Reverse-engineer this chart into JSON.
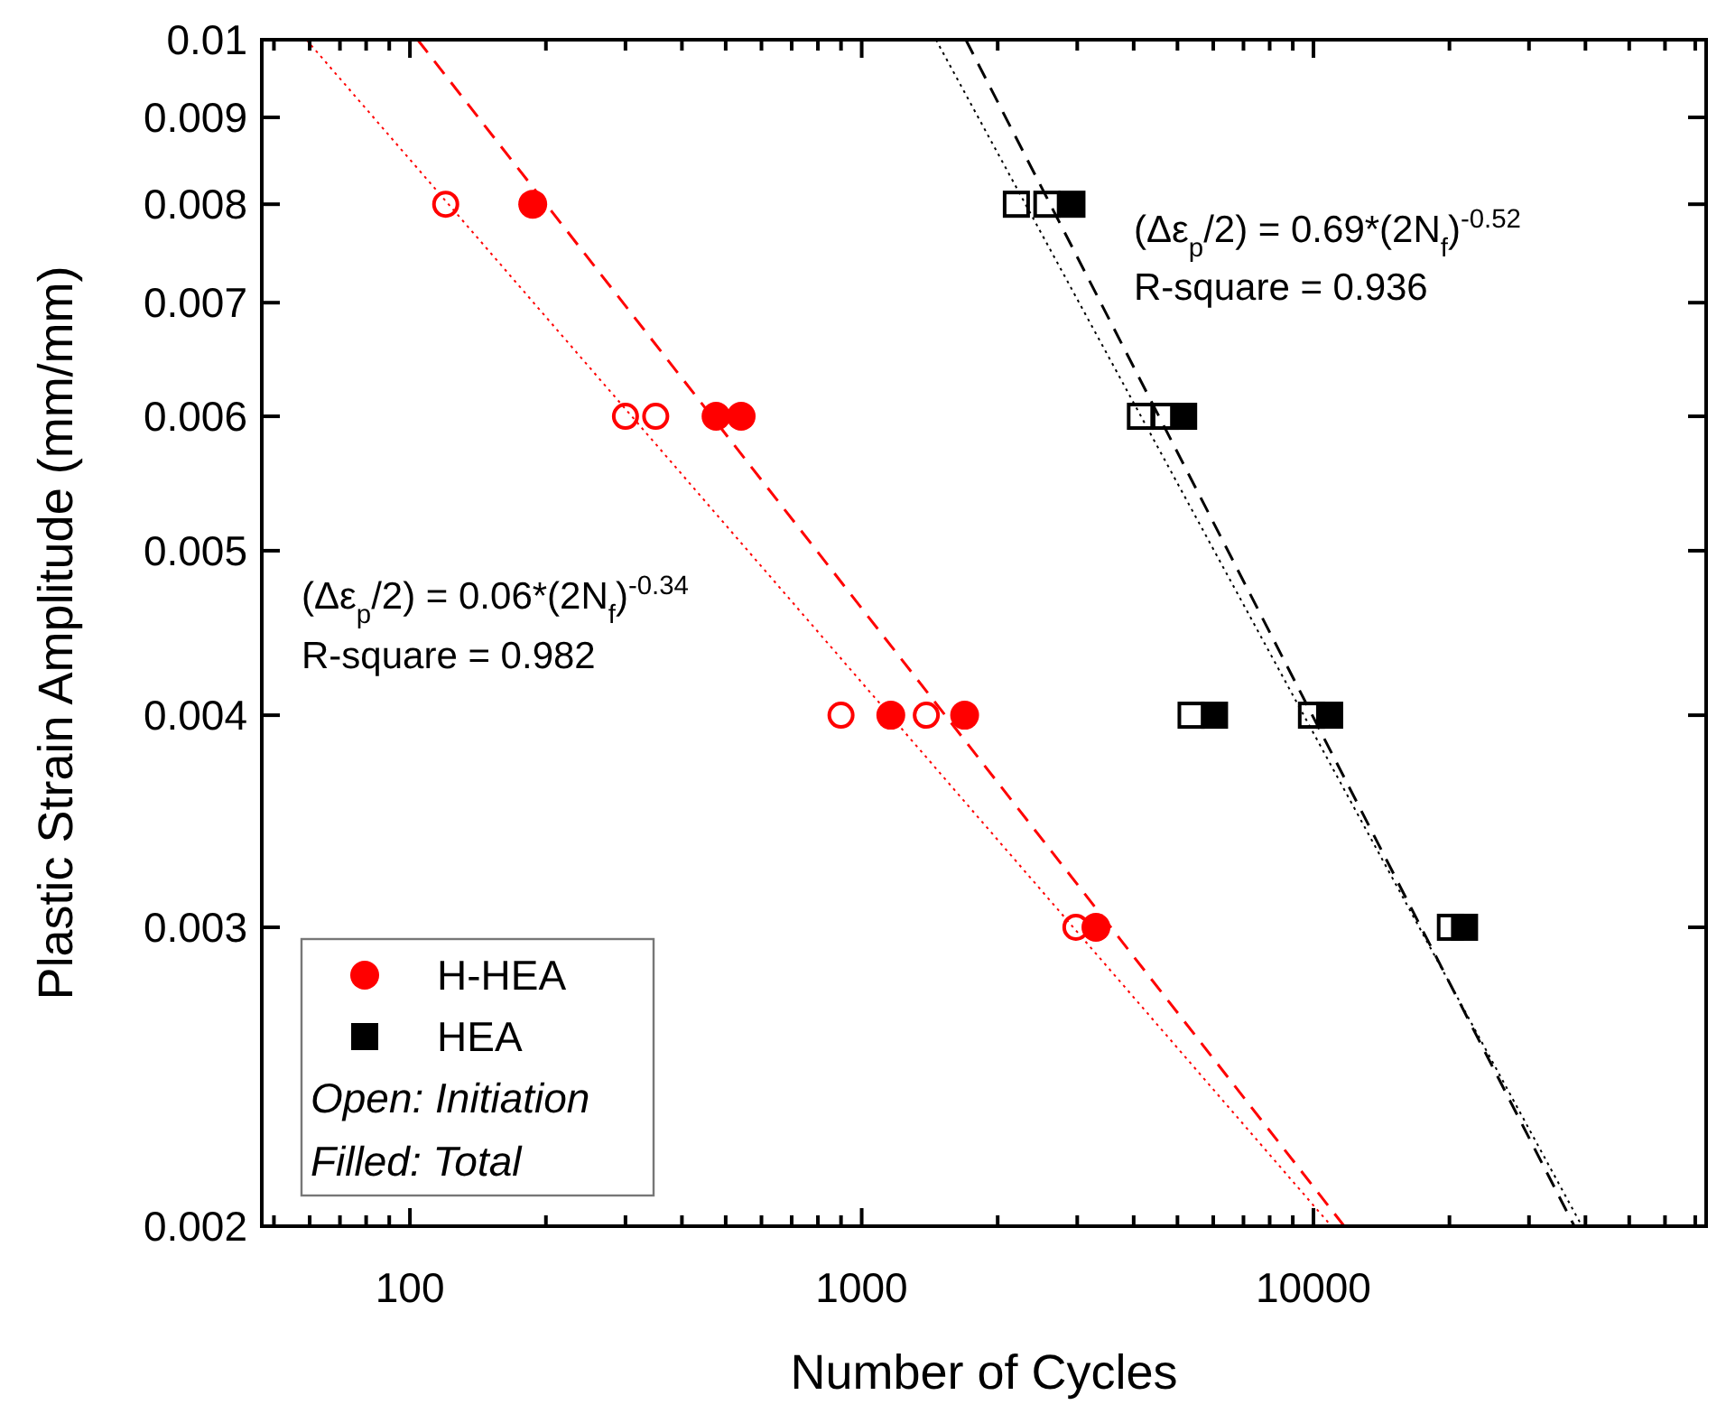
{
  "chart_data": {
    "type": "scatter",
    "xlabel": "Number of Cycles",
    "ylabel": "Plastic Strain Amplitude (mm/mm)",
    "log": "xy",
    "legend": "bottom left",
    "grid": false,
    "xlim": [
      47,
      74000
    ],
    "ylim": [
      0.002,
      0.01
    ],
    "xticks": [
      {
        "value": 50,
        "label": null
      },
      {
        "value": 60,
        "label": null
      },
      {
        "value": 70,
        "label": null
      },
      {
        "value": 80,
        "label": null
      },
      {
        "value": 90,
        "label": null
      },
      100,
      {
        "value": 200,
        "label": null
      },
      {
        "value": 300,
        "label": null
      },
      {
        "value": 400,
        "label": null
      },
      {
        "value": 500,
        "label": null
      },
      {
        "value": 600,
        "label": null
      },
      {
        "value": 700,
        "label": null
      },
      {
        "value": 800,
        "label": null
      },
      {
        "value": 900,
        "label": null
      },
      1000,
      {
        "value": 2000,
        "label": null
      },
      {
        "value": 3000,
        "label": null
      },
      {
        "value": 4000,
        "label": null
      },
      {
        "value": 5000,
        "label": null
      },
      {
        "value": 6000,
        "label": null
      },
      {
        "value": 7000,
        "label": null
      },
      {
        "value": 8000,
        "label": null
      },
      {
        "value": 9000,
        "label": null
      },
      10000,
      {
        "value": 20000,
        "label": null
      },
      {
        "value": 30000,
        "label": null
      },
      {
        "value": 40000,
        "label": null
      },
      {
        "value": 50000,
        "label": null
      },
      {
        "value": 60000,
        "label": null
      },
      {
        "value": 70000,
        "label": null
      }
    ],
    "yticks": [
      0.002,
      0.003,
      0.004,
      0.005,
      0.006,
      0.007,
      0.008,
      0.009,
      0.01
    ],
    "series": [
      {
        "type": "line",
        "color": "#ff0000",
        "line_style": "dashed",
        "marker": "none",
        "x": [
          104,
          11700
        ],
        "values": [
          0.01,
          0.002
        ]
      },
      {
        "type": "line",
        "color": "#ff0000",
        "line_style": "dotted",
        "marker": "none",
        "x": [
          59,
          10960
        ],
        "values": [
          0.01,
          0.002
        ]
      },
      {
        "type": "line",
        "color": "#000000",
        "line_style": "dashed",
        "marker": "none",
        "x": [
          1700,
          37800
        ],
        "values": [
          0.01,
          0.002
        ]
      },
      {
        "type": "line",
        "color": "#000000",
        "line_style": "dotted",
        "marker": "none",
        "x": [
          1460,
          39300
        ],
        "values": [
          0.01,
          0.002
        ]
      },
      {
        "color": "#ff0000",
        "marker": "circle-open",
        "x": [
          120,
          300,
          350,
          900,
          1390,
          2980
        ],
        "values": [
          0.008,
          0.006,
          0.006,
          0.004,
          0.004,
          0.003
        ]
      },
      {
        "name": "H-HEA",
        "color": "#ff0000",
        "marker": "circle",
        "x": [
          187,
          476,
          541,
          1160,
          1690,
          3300
        ],
        "values": [
          0.008,
          0.006,
          0.006,
          0.004,
          0.004,
          0.003
        ]
      },
      {
        "color": "#000000",
        "marker": "square-open",
        "x": [
          2200,
          2570,
          4140,
          4700,
          5360,
          9900,
          20100
        ],
        "values": [
          0.008,
          0.008,
          0.006,
          0.006,
          0.004,
          0.004,
          0.003
        ]
      },
      {
        "name": "HEA",
        "color": "#000000",
        "marker": "square",
        "x": [
          2920,
          5160,
          6040,
          10860,
          21600
        ],
        "values": [
          0.008,
          0.006,
          0.004,
          0.004,
          0.003
        ]
      }
    ],
    "annotations": [
      "(Δε$_{p}$/2) = 0.06*(2N$_{f}$)$^{-0.34}$",
      "R-square = 0.982",
      "(Δε$_{p}$/2) = 0.69*(2N$_{f}$)$^{-0.52}$",
      "R-square = 0.936",
      "Open: Initiation",
      "Filled: Total"
    ]
  }
}
